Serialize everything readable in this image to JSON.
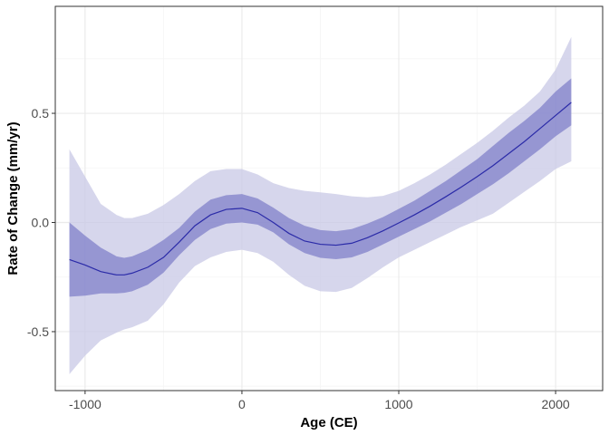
{
  "chart_data": {
    "type": "line",
    "title": "",
    "xlabel": "Age (CE)",
    "ylabel": "Rate of Change (mm/yr)",
    "xlim": [
      -1190,
      2300
    ],
    "ylim": [
      -0.77,
      0.99
    ],
    "x_ticks": [
      -1000,
      0,
      1000,
      2000
    ],
    "x_tick_labels": [
      "-1000",
      "0",
      "1000",
      "2000"
    ],
    "y_ticks": [
      -0.5,
      0.0,
      0.5
    ],
    "y_tick_labels": [
      "-0.5",
      "0.0",
      "0.5"
    ],
    "grid": true,
    "legend": "none",
    "colors": {
      "line": "#2b2ba8",
      "inner_band": "#7b7bc8",
      "outer_band": "#c8c8e6",
      "grid_major": "#ebebeb",
      "grid_minor": "#f5f5f5",
      "panel_border": "#333333"
    },
    "series": [
      {
        "x": [
          -1100,
          -1000,
          -900,
          -800,
          -750,
          -700,
          -600,
          -500,
          -400,
          -300,
          -200,
          -100,
          0,
          100,
          200,
          300,
          400,
          500,
          600,
          700,
          800,
          900,
          1000,
          1100,
          1200,
          1300,
          1400,
          1500,
          1600,
          1700,
          1800,
          1900,
          2000,
          2100
        ],
        "mean": [
          -0.17,
          -0.195,
          -0.225,
          -0.24,
          -0.24,
          -0.232,
          -0.205,
          -0.16,
          -0.09,
          -0.015,
          0.035,
          0.06,
          0.065,
          0.045,
          0.0,
          -0.05,
          -0.085,
          -0.1,
          -0.104,
          -0.095,
          -0.07,
          -0.038,
          -0.002,
          0.035,
          0.075,
          0.118,
          0.163,
          0.21,
          0.26,
          0.315,
          0.37,
          0.43,
          0.49,
          0.55
        ],
        "inner_lower": [
          -0.34,
          -0.335,
          -0.325,
          -0.325,
          -0.322,
          -0.315,
          -0.285,
          -0.23,
          -0.15,
          -0.08,
          -0.03,
          -0.005,
          0.0,
          -0.01,
          -0.045,
          -0.1,
          -0.14,
          -0.162,
          -0.168,
          -0.16,
          -0.135,
          -0.1,
          -0.065,
          -0.03,
          0.005,
          0.045,
          0.085,
          0.13,
          0.175,
          0.225,
          0.28,
          0.335,
          0.395,
          0.445
        ],
        "inner_upper": [
          0.0,
          -0.06,
          -0.115,
          -0.155,
          -0.162,
          -0.155,
          -0.125,
          -0.08,
          -0.025,
          0.05,
          0.105,
          0.125,
          0.13,
          0.11,
          0.068,
          0.02,
          -0.015,
          -0.035,
          -0.04,
          -0.03,
          -0.005,
          0.025,
          0.062,
          0.1,
          0.145,
          0.19,
          0.24,
          0.29,
          0.35,
          0.41,
          0.465,
          0.525,
          0.6,
          0.66
        ],
        "outer_lower": [
          -0.695,
          -0.61,
          -0.54,
          -0.505,
          -0.49,
          -0.48,
          -0.45,
          -0.375,
          -0.275,
          -0.2,
          -0.16,
          -0.135,
          -0.125,
          -0.14,
          -0.18,
          -0.24,
          -0.29,
          -0.315,
          -0.318,
          -0.3,
          -0.255,
          -0.205,
          -0.16,
          -0.125,
          -0.09,
          -0.055,
          -0.02,
          0.01,
          0.04,
          0.09,
          0.14,
          0.19,
          0.245,
          0.28
        ],
        "outer_upper": [
          0.335,
          0.21,
          0.085,
          0.035,
          0.02,
          0.02,
          0.04,
          0.08,
          0.13,
          0.19,
          0.235,
          0.245,
          0.245,
          0.22,
          0.18,
          0.158,
          0.145,
          0.138,
          0.13,
          0.12,
          0.115,
          0.122,
          0.145,
          0.18,
          0.22,
          0.265,
          0.315,
          0.365,
          0.42,
          0.48,
          0.535,
          0.6,
          0.7,
          0.85
        ]
      }
    ]
  }
}
